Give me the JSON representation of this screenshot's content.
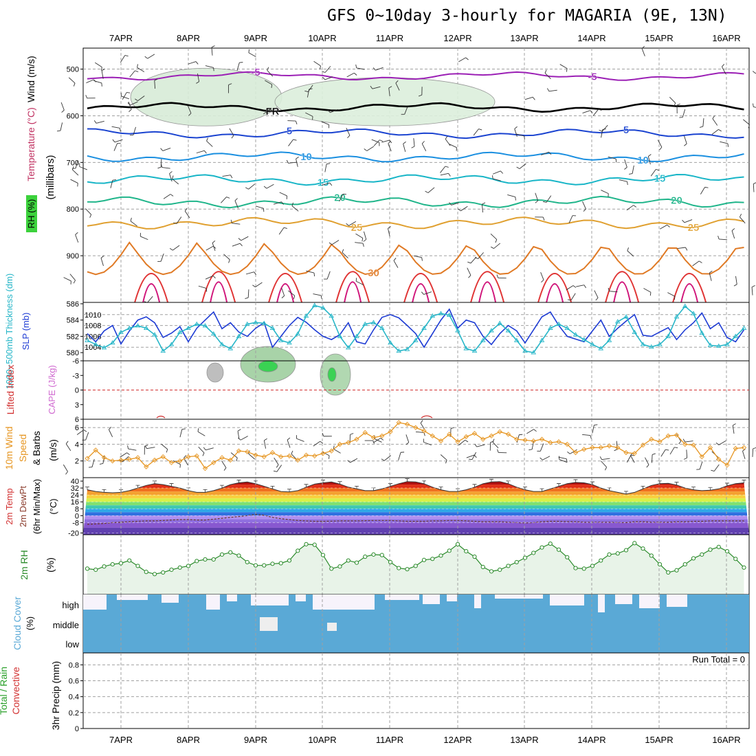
{
  "title": "GFS 0~10day 3-hourly for MAGARIA (9E, 13N)",
  "dates": [
    "7APR",
    "8APR",
    "9APR",
    "10APR",
    "11APR",
    "12APR",
    "13APR",
    "14APR",
    "15APR",
    "16APR"
  ],
  "colors": {
    "grid": "#a0a0a0",
    "frame": "#000000",
    "rh_fill": "#e8f3e8",
    "rh_line": "#2a8a2a",
    "slp": "#1d3bd4",
    "thick": "#27b6c8",
    "wind10": "#e69520",
    "cloud": "#5aa9d6",
    "cape": "#d06ad0",
    "li": "#d23030"
  },
  "chart_data": [
    {
      "type": "contour",
      "panel": "upper-air",
      "ylabel": "(millibars)",
      "side_labels": [
        "Wind (m/s)",
        "Temperature (°C)",
        "RH (%)"
      ],
      "yticks": [
        500,
        600,
        700,
        800,
        900
      ],
      "ylim": [
        1000,
        455
      ],
      "fr_labels": [
        "FR",
        "FR"
      ],
      "temp_contours": [
        {
          "value": -5,
          "labels": [
            "-5",
            "-5"
          ],
          "color": "#9b1fb5",
          "base_mb": 515
        },
        {
          "value": 0,
          "labels": [
            "FR"
          ],
          "color": "#000000",
          "base_mb": 582
        },
        {
          "value": 5,
          "labels": [
            "5",
            "5"
          ],
          "color": "#1a43d0",
          "base_mb": 638
        },
        {
          "value": 10,
          "labels": [
            "10",
            "10"
          ],
          "color": "#1a8fe0",
          "base_mb": 688
        },
        {
          "value": 15,
          "labels": [
            "15",
            "15"
          ],
          "color": "#17b5c7",
          "base_mb": 737
        },
        {
          "value": 20,
          "labels": [
            "20",
            "20"
          ],
          "color": "#1fb58a",
          "base_mb": 785
        },
        {
          "value": 25,
          "labels": [
            "25",
            "25"
          ],
          "color": "#e0a030",
          "base_mb": 830
        },
        {
          "value": 30,
          "labels": [
            "30"
          ],
          "color": "#e07a25",
          "base_mb": 880
        }
      ]
    },
    {
      "type": "line",
      "panel": "slp-thickness",
      "ylabel_left": "1000~500mb Thickness (dm)",
      "ylabel_right": "SLP (mb)",
      "left_ticks": [
        580,
        582,
        584,
        586
      ],
      "right_ticks": [
        1004,
        1006,
        1008,
        1010
      ],
      "series": [
        {
          "name": "SLP",
          "axis": "slp",
          "values": [
            1007.5,
            1006.0,
            1005.8,
            1006.5,
            1005.0,
            1007.0,
            1008.0,
            1004.6,
            1007.0,
            1009.0,
            1009.6,
            1008.5,
            1005.8,
            1006.6,
            1007.8,
            1005.0,
            1007.5,
            1009.0,
            1010.5,
            1007.4,
            1008.5,
            1006.8,
            1006.0,
            1007.5,
            1008.5,
            1004.0,
            1006.0,
            1008.0,
            1009.5,
            1008.6,
            1007.2,
            1006.0,
            1005.4,
            1006.3,
            1008.5,
            1005.0,
            1004.6,
            1007.2,
            1009.5,
            1010.0,
            1009.4,
            1008.0,
            1006.5,
            1004.0,
            1006.5,
            1009.0,
            1011.0,
            1007.5,
            1009.0,
            1008.5,
            1006.0,
            1004.5,
            1006.5,
            1008.0,
            1007.0,
            1004.8,
            1007.2,
            1009.6,
            1010.5,
            1008.0,
            1006.0,
            1005.5,
            1005.0,
            1007.0,
            1009.0,
            1006.0,
            1007.5,
            1008.8,
            1010.0,
            1006.2,
            1006.0,
            1006.8,
            1007.6,
            1005.4,
            1007.2,
            1008.5,
            1010.3,
            1007.4,
            1008.5,
            1005.8,
            1005.0,
            1007.2,
            1009.0,
            1007.0,
            1008.5
          ]
        },
        {
          "name": "1000-500mb thickness",
          "axis": "thick",
          "values": [
            580.5,
            581.3,
            581.5,
            581.5,
            581.0,
            580.6,
            581.2,
            582.5,
            583.0,
            583.3,
            583.0,
            582.2,
            580.2,
            581.0,
            582.5,
            583.0,
            583.5,
            583.3,
            582.3,
            581.0,
            580.5,
            582.0,
            583.5,
            583.7,
            583.6,
            583.0,
            581.5,
            581.2,
            582.3,
            584.5,
            585.8,
            585.5,
            584.5,
            582.0,
            580.6,
            582.0,
            583.5,
            583.7,
            583.0,
            581.2,
            580.2,
            580.4,
            581.5,
            583.0,
            584.5,
            584.8,
            584.6,
            582.7,
            580.5,
            580.2,
            581.5,
            582.7,
            583.6,
            582.7,
            581.5,
            580.2,
            580.0,
            581.5,
            583.0,
            583.5,
            583.0,
            582.2,
            581.6,
            581.0,
            580.5,
            581.5,
            583.8,
            584.4,
            582.5,
            581.0,
            580.7,
            581.0,
            582.0,
            584.4,
            585.7,
            584.8,
            582.4,
            580.9,
            580.8,
            581.0,
            582.0,
            583.0,
            582.6,
            581.7,
            580.9
          ]
        }
      ]
    },
    {
      "type": "line",
      "panel": "cape-li",
      "ylabel_left": "Lifted Index",
      "ylabel_right": "CAPE (J/kg)",
      "yticks": [
        "-6",
        "-3",
        "0",
        "3",
        "6"
      ],
      "ylim": [
        -6,
        6
      ]
    },
    {
      "type": "line",
      "panel": "wind10m",
      "ylabel": "10m Wind Speed & Barbs",
      "unit": "(m/s)",
      "yticks": [
        2,
        4,
        6
      ],
      "ylim": [
        0,
        7
      ],
      "series": [
        {
          "name": "10m Wind Speed",
          "values": [
            2.9,
            2.5,
            1.7,
            2.3,
            3.3,
            2.4,
            2.0,
            2.1,
            2.2,
            2.4,
            1.3,
            2.1,
            2.5,
            1.8,
            2.0,
            2.5,
            2.6,
            1.1,
            1.8,
            2.4,
            2.1,
            3.2,
            3.1,
            2.7,
            2.5,
            3.0,
            2.5,
            2.6,
            2.1,
            2.7,
            2.6,
            2.9,
            3.2,
            4.0,
            4.2,
            4.6,
            5.4,
            4.8,
            5.0,
            5.5,
            6.6,
            6.4,
            6.0,
            5.6,
            5.0,
            4.4,
            5.2,
            4.3,
            4.9,
            5.3,
            4.6,
            5.0,
            5.5,
            5.2,
            4.6,
            4.5,
            4.4,
            4.6,
            4.2,
            4.3,
            4.0,
            3.0,
            3.4,
            3.6,
            3.6,
            3.8,
            3.6,
            3.0,
            2.9,
            3.9,
            4.6,
            4.3,
            5.0,
            5.1,
            4.0,
            3.9,
            2.5,
            3.6,
            2.2,
            1.5,
            3.5,
            3.6,
            2.8,
            3.7,
            3.4
          ]
        }
      ]
    },
    {
      "type": "area",
      "panel": "temp2m",
      "ylabel": "2m Temp 2m DewPt (6hr Min/Max)",
      "unit": "(°C)",
      "yticks": [
        "40",
        "32",
        "24",
        "16",
        "8",
        "0",
        "-8",
        "-20"
      ],
      "ylim": [
        -22,
        44
      ],
      "series": [
        {
          "name": "2m Temp",
          "values": [
            27,
            27.5,
            29,
            30,
            28,
            27,
            26.5,
            27,
            29,
            32,
            35,
            37,
            36,
            34,
            32,
            29,
            27,
            27,
            29,
            32,
            36,
            38,
            39,
            37,
            34,
            31,
            28,
            27.5,
            29,
            33,
            36.5,
            38,
            39,
            36.5,
            33,
            31,
            29,
            29,
            31,
            34,
            37,
            39.5,
            39,
            37,
            33,
            30,
            28,
            28,
            30,
            33,
            37,
            39,
            39.5,
            37,
            33,
            30,
            28,
            28,
            31,
            34,
            37,
            38.5,
            38,
            36,
            32,
            29,
            27,
            25,
            27,
            31,
            35,
            37,
            37.5,
            35.5,
            32,
            30,
            29,
            29.5,
            31,
            34.5,
            37,
            38,
            36,
            32,
            29,
            28
          ]
        },
        {
          "name": "2m DewPt",
          "values": [
            -13,
            -12,
            -11,
            -10,
            -9.5,
            -9,
            -8,
            -7.5,
            -7,
            -6.5,
            -6,
            -6,
            -5.5,
            -5,
            -4.5,
            -4.5,
            -5,
            -5,
            -4,
            -3,
            -2,
            -1,
            0,
            1.5,
            0.5,
            -2,
            -3.5,
            -4.5,
            -5.5,
            -6,
            -6.5,
            -6.5,
            -6.3,
            -6,
            -6,
            -6,
            -5.8,
            -5.5,
            -5.5,
            -5.5,
            -6,
            -6.5,
            -6.5,
            -6.5,
            -6,
            -6,
            -5.5,
            -5.5,
            -6,
            -6.5,
            -7,
            -7,
            -7,
            -7.5,
            -8,
            -8.5,
            -8,
            -7,
            -6.5,
            -6.5,
            -6.8,
            -7,
            -7.5,
            -7.5,
            -7.5,
            -7.5,
            -8,
            -8,
            -7,
            -7,
            -7.5,
            -7.5,
            -7.5,
            -7,
            -7,
            -6.5,
            -6.5,
            -6,
            -6,
            -6,
            -6,
            -6,
            -5.5,
            -5.5,
            -5
          ]
        }
      ]
    },
    {
      "type": "line",
      "panel": "rh2m",
      "ylabel": "2m RH",
      "unit": "(%)",
      "ylim": [
        0,
        100
      ],
      "series": [
        {
          "name": "2m RH",
          "values": [
            11,
            15,
            33,
            40,
            38,
            44,
            48,
            50,
            55,
            45,
            34,
            30,
            33,
            38,
            42,
            45,
            54,
            57,
            57,
            66,
            70,
            64,
            52,
            46,
            46,
            49,
            50,
            55,
            73,
            85,
            84,
            65,
            40,
            44,
            55,
            51,
            62,
            66,
            65,
            52,
            41,
            39,
            45,
            56,
            58,
            64,
            73,
            85,
            72,
            62,
            43,
            35,
            38,
            45,
            52,
            60,
            69,
            79,
            86,
            75,
            61,
            41,
            40,
            45,
            55,
            66,
            68,
            74,
            87,
            77,
            64,
            48,
            33,
            37,
            48,
            59,
            66,
            75,
            80,
            72,
            58,
            42,
            32,
            40,
            52,
            60,
            70
          ]
        }
      ]
    },
    {
      "type": "area",
      "panel": "cloud",
      "ylabel": "Cloud Cover",
      "unit": "(%)",
      "level_labels": [
        "high",
        "middle",
        "low"
      ]
    },
    {
      "type": "bar",
      "panel": "precip",
      "ylabel_left": "Total / Rain",
      "ylabel_left2": "Convective",
      "ylabel": "3hr Precip (mm)",
      "yticks": [
        "0",
        "0.2",
        "0.4",
        "0.6",
        "0.8"
      ],
      "ylim": [
        0,
        0.95
      ],
      "run_total": "Run Total = 0"
    }
  ]
}
